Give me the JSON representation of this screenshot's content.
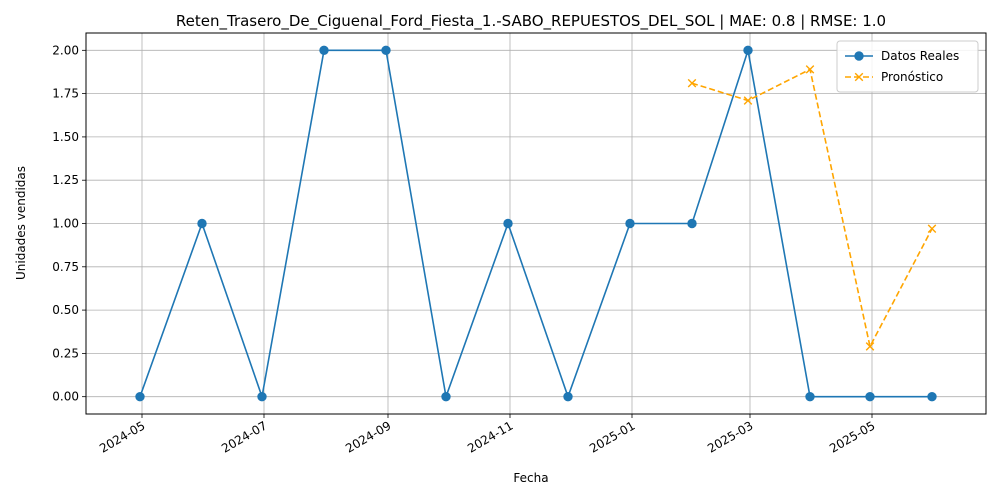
{
  "chart_data": {
    "type": "line",
    "title": "Reten_Trasero_De_Ciguenal_Ford_Fiesta_1.-SABO_REPUESTOS_DEL_SOL | MAE: 0.8 | RMSE: 1.0",
    "xlabel": "Fecha",
    "ylabel": "Unidades vendidas",
    "x_ticks": [
      "2024-05",
      "2024-07",
      "2024-09",
      "2024-11",
      "2025-01",
      "2025-03",
      "2025-05"
    ],
    "y_ticks": [
      "0.00",
      "0.25",
      "0.50",
      "0.75",
      "1.00",
      "1.25",
      "1.50",
      "1.75",
      "2.00"
    ],
    "ylim": [
      -0.1,
      2.1
    ],
    "xlim": [
      "2024-04-03",
      "2025-06-27"
    ],
    "grid": true,
    "legend_position": "top-right",
    "series": [
      {
        "name": "Datos Reales",
        "color": "#1f77b4",
        "style": "solid",
        "marker": "circle",
        "x": [
          "2024-04-30",
          "2024-05-31",
          "2024-06-30",
          "2024-07-31",
          "2024-08-31",
          "2024-09-30",
          "2024-10-31",
          "2024-11-30",
          "2024-12-31",
          "2025-01-31",
          "2025-02-28",
          "2025-03-31",
          "2025-04-30",
          "2025-05-31"
        ],
        "values": [
          0,
          1,
          0,
          2,
          2,
          0,
          1,
          0,
          1,
          1,
          2,
          0,
          0,
          0
        ]
      },
      {
        "name": "Pronóstico",
        "color": "#ffa500",
        "style": "dashed",
        "marker": "x",
        "x": [
          "2025-01-31",
          "2025-02-28",
          "2025-03-31",
          "2025-04-30",
          "2025-05-31"
        ],
        "values": [
          1.81,
          1.71,
          1.89,
          0.29,
          0.97
        ]
      }
    ]
  }
}
